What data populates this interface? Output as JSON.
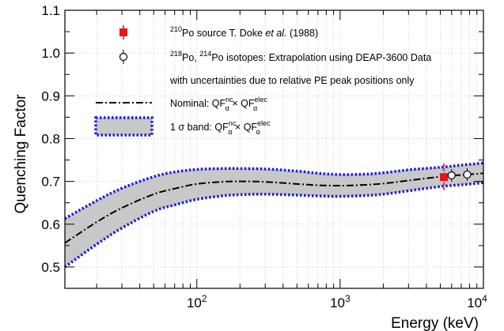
{
  "chart_data": {
    "type": "line",
    "xlabel": "Energy (keV)",
    "ylabel": "Quenching Factor",
    "xscale": "log",
    "xlim": [
      12,
      10000
    ],
    "ylim": [
      0.45,
      1.1
    ],
    "grid": true,
    "legend_position": "top-left",
    "x_ticks": [
      {
        "base": "10",
        "exp": "2"
      },
      {
        "base": "10",
        "exp": "3"
      },
      {
        "base": "10",
        "exp": "4"
      }
    ],
    "y_ticks": [
      "0.5",
      "0.6",
      "0.7",
      "0.8",
      "0.9",
      "1.0",
      "1.1"
    ],
    "y_tick_values": [
      0.5,
      0.6,
      0.7,
      0.8,
      0.9,
      1.0,
      1.1
    ],
    "legend": [
      {
        "kind": "red-square",
        "sup1": "210",
        "text1": "Po source T. Doke ",
        "italic": "et al.",
        "text2": " (1988)"
      },
      {
        "kind": "open-circle",
        "sup1": "218",
        "text1": "Po, ",
        "sup2": "214",
        "text2": "Po isotopes: Extrapolation using DEAP-3600 Data"
      },
      {
        "kind": "none",
        "text1": "with uncertainties due to relative PE peak positions only"
      },
      {
        "kind": "dash-dot",
        "text1": "Nominal: QF",
        "sup_a": "nc",
        "sub_a": "α",
        "mid": " × QF",
        "sup_b": "elec",
        "sub_b": "α"
      },
      {
        "kind": "band",
        "text1": "1 σ band: QF",
        "sup_a": "nc",
        "sub_a": "α",
        "mid": " × QF",
        "sup_b": "elec",
        "sub_b": "α"
      }
    ],
    "series": [
      {
        "name": "Nominal: QF^nc_α × QF^elec_α",
        "x": [
          12,
          20,
          30,
          50,
          70,
          100,
          150,
          200,
          300,
          500,
          700,
          1000,
          1500,
          2000,
          3000,
          5000,
          7000,
          10000
        ],
        "y": [
          0.556,
          0.605,
          0.638,
          0.67,
          0.683,
          0.694,
          0.699,
          0.7,
          0.699,
          0.694,
          0.691,
          0.69,
          0.692,
          0.695,
          0.702,
          0.711,
          0.715,
          0.719
        ]
      },
      {
        "name": "1 σ band upper",
        "x": [
          12,
          20,
          30,
          50,
          70,
          100,
          150,
          200,
          300,
          500,
          700,
          1000,
          1500,
          2000,
          3000,
          5000,
          7000,
          10000
        ],
        "y": [
          0.613,
          0.655,
          0.684,
          0.711,
          0.722,
          0.728,
          0.73,
          0.73,
          0.729,
          0.724,
          0.719,
          0.716,
          0.717,
          0.72,
          0.727,
          0.733,
          0.738,
          0.743
        ]
      },
      {
        "name": "1 σ band lower",
        "x": [
          12,
          20,
          30,
          50,
          70,
          100,
          150,
          200,
          300,
          500,
          700,
          1000,
          1500,
          2000,
          3000,
          5000,
          7000,
          10000
        ],
        "y": [
          0.5,
          0.553,
          0.591,
          0.63,
          0.645,
          0.658,
          0.666,
          0.669,
          0.67,
          0.668,
          0.666,
          0.665,
          0.667,
          0.67,
          0.678,
          0.688,
          0.692,
          0.697
        ]
      }
    ],
    "points": [
      {
        "name": "210Po source T. Doke et al. (1988)",
        "marker": "red-square",
        "x": 5300,
        "y": 0.71,
        "yerr": 0.032
      },
      {
        "name": "218Po, 214Po isotopes",
        "marker": "open-circle",
        "x": 6000,
        "y": 0.714,
        "yerr": 0.003
      },
      {
        "name": "218Po, 214Po isotopes",
        "marker": "open-circle",
        "x": 7700,
        "y": 0.716,
        "yerr": 0.003
      }
    ],
    "colors": {
      "band_fill": "#c8c8c8",
      "band_edge": "#1a1ae6",
      "point": "#e8141e",
      "grid": "#d8d8d8"
    }
  }
}
